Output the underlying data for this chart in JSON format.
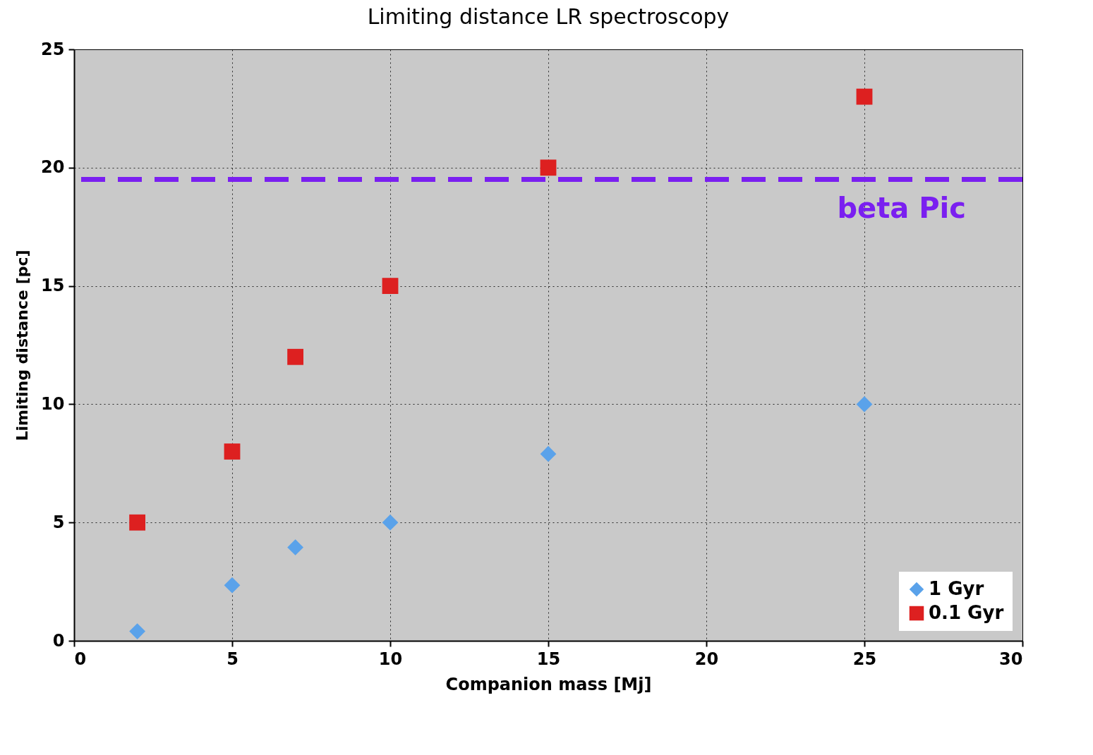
{
  "chart_data": {
    "type": "scatter",
    "title": "Limiting distance  LR spectroscopy",
    "xlabel": "Companion mass [Mj]",
    "ylabel": "Limiting distance [pc]",
    "xlim": [
      0,
      30
    ],
    "xticks": [
      0,
      5,
      10,
      15,
      20,
      25,
      30
    ],
    "ylim": [
      0,
      25
    ],
    "yticks": [
      0,
      5,
      10,
      15,
      20,
      25
    ],
    "grid": true,
    "legend": "bottom right",
    "series": [
      {
        "name": "1 Gyr",
        "color": "#5aa2ea",
        "marker": "diamond",
        "x": [
          2,
          5,
          7,
          10,
          15,
          25
        ],
        "values": [
          0.4,
          2.35,
          3.95,
          5,
          7.9,
          10
        ]
      },
      {
        "name": "0.1 Gyr",
        "color": "#dd2020",
        "marker": "square",
        "x": [
          2,
          5,
          7,
          10,
          15,
          25
        ],
        "values": [
          5,
          8,
          12,
          15,
          20,
          23
        ]
      }
    ],
    "ref_lines": [
      {
        "axis": "y",
        "value": 19.5,
        "label": "beta Pic",
        "color": "#7a1ff0",
        "line_style": "dashed"
      }
    ]
  }
}
